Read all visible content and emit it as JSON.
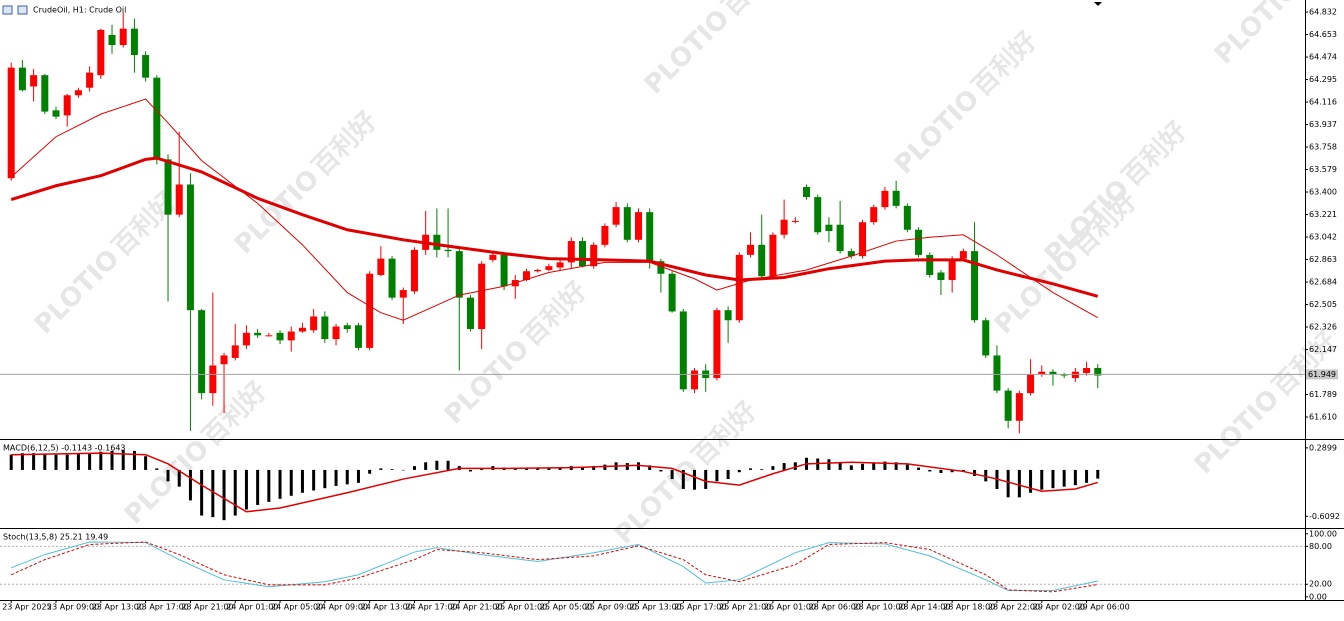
{
  "chart_data": [
    {
      "type": "candlestick",
      "title": "CrudeOil, H1: Crude Oil",
      "open": [
        63.51,
        64.39,
        64.24,
        64.33,
        64.05,
        64.01,
        64.17,
        64.23,
        64.33,
        64.65,
        64.57,
        64.7,
        64.49,
        64.31,
        63.66,
        63.22,
        63.46,
        62.46,
        61.8,
        62.03,
        62.08,
        62.18,
        62.28,
        62.26,
        62.28,
        62.22,
        62.29,
        62.3,
        62.41,
        62.23,
        62.34,
        62.34,
        62.16,
        62.74,
        62.87,
        62.56,
        62.61,
        62.94,
        63.06,
        62.94,
        62.93,
        62.56,
        62.31,
        62.86,
        62.9,
        62.65,
        62.7,
        62.77,
        62.78,
        62.8,
        62.84,
        63.01,
        62.81,
        62.98,
        63.14,
        63.28,
        63.02,
        63.24,
        62.85,
        62.75,
        62.45,
        61.83,
        61.98,
        61.92,
        62.46,
        62.38,
        62.9,
        62.98,
        62.73,
        63.06,
        63.17,
        63.44,
        63.36,
        63.14,
        63.14,
        62.93,
        62.89,
        63.16,
        63.28,
        63.41,
        63.29,
        63.1,
        62.9,
        62.76,
        62.7,
        62.87,
        62.93,
        62.38,
        62.1,
        61.82,
        61.58,
        61.8,
        61.95,
        61.97,
        61.95,
        61.92,
        61.96,
        62.0
      ],
      "high": [
        64.43,
        64.45,
        64.38,
        64.34,
        64.08,
        64.18,
        64.23,
        64.4,
        64.7,
        64.73,
        64.83,
        64.78,
        64.52,
        64.33,
        63.7,
        63.88,
        63.55,
        62.47,
        62.6,
        62.12,
        62.35,
        62.34,
        62.31,
        62.28,
        62.3,
        62.33,
        62.36,
        62.47,
        62.45,
        62.35,
        62.36,
        62.36,
        62.77,
        62.97,
        62.89,
        62.64,
        62.96,
        63.25,
        63.27,
        63.27,
        62.96,
        62.58,
        62.85,
        62.93,
        62.92,
        62.74,
        62.79,
        62.79,
        62.83,
        62.87,
        63.04,
        63.04,
        63.0,
        63.15,
        63.32,
        63.31,
        63.27,
        63.27,
        62.87,
        62.77,
        62.47,
        62.0,
        62.03,
        62.48,
        62.49,
        62.92,
        63.08,
        63.22,
        63.08,
        63.34,
        63.2,
        63.46,
        63.38,
        63.2,
        63.33,
        62.95,
        63.18,
        63.3,
        63.44,
        63.49,
        63.31,
        63.12,
        62.92,
        62.78,
        62.89,
        62.95,
        63.16,
        62.4,
        62.18,
        61.84,
        61.82,
        62.07,
        62.02,
        61.99,
        61.96,
        62.0,
        62.05,
        62.03
      ],
      "low": [
        63.49,
        64.2,
        64.12,
        64.02,
        63.98,
        63.92,
        64.15,
        64.2,
        64.3,
        64.5,
        64.55,
        64.35,
        64.28,
        63.62,
        62.53,
        63.2,
        61.5,
        61.75,
        61.7,
        61.64,
        62.06,
        62.15,
        62.24,
        62.25,
        62.19,
        62.13,
        62.28,
        62.28,
        62.2,
        62.18,
        62.28,
        62.14,
        62.14,
        62.73,
        62.54,
        62.35,
        62.59,
        62.9,
        62.88,
        62.88,
        61.98,
        62.29,
        62.15,
        62.84,
        62.62,
        62.55,
        62.69,
        62.76,
        62.77,
        62.78,
        62.79,
        62.8,
        62.79,
        62.96,
        63.12,
        63.0,
        63.0,
        62.79,
        62.6,
        62.44,
        61.81,
        61.8,
        61.81,
        61.9,
        62.2,
        62.36,
        62.88,
        62.7,
        62.72,
        63.03,
        63.15,
        63.34,
        63.06,
        63.0,
        62.91,
        62.87,
        62.87,
        63.14,
        63.26,
        63.27,
        63.08,
        62.88,
        62.72,
        62.58,
        62.6,
        62.85,
        62.36,
        62.08,
        61.8,
        61.52,
        61.48,
        61.78,
        61.93,
        61.86,
        61.92,
        61.89,
        61.94,
        61.84
      ],
      "close": [
        64.39,
        64.21,
        64.33,
        64.04,
        64.0,
        64.17,
        64.21,
        64.35,
        64.69,
        64.57,
        64.7,
        64.49,
        64.31,
        63.66,
        63.22,
        63.46,
        62.46,
        61.8,
        62.02,
        62.1,
        62.18,
        62.28,
        62.26,
        62.26,
        62.22,
        62.29,
        62.32,
        62.41,
        62.23,
        62.33,
        62.31,
        62.16,
        62.75,
        62.87,
        62.56,
        62.62,
        62.94,
        63.06,
        62.94,
        62.93,
        62.56,
        62.31,
        62.83,
        62.9,
        62.65,
        62.7,
        62.77,
        62.78,
        62.81,
        62.84,
        63.01,
        62.81,
        62.98,
        63.13,
        63.28,
        63.02,
        63.24,
        62.85,
        62.75,
        62.45,
        61.83,
        61.98,
        61.92,
        62.46,
        62.38,
        62.9,
        62.98,
        62.73,
        63.06,
        63.18,
        63.17,
        63.36,
        63.08,
        63.09,
        62.93,
        62.89,
        63.16,
        63.28,
        63.41,
        63.29,
        63.1,
        62.9,
        62.74,
        62.7,
        62.87,
        62.93,
        62.38,
        62.1,
        61.82,
        61.58,
        61.8,
        61.95,
        61.97,
        61.95,
        61.94,
        61.97,
        62.0,
        61.94
      ],
      "up_color": "#ff0000",
      "down_color": "#008000",
      "lines": [
        {
          "color": "#e00000",
          "width": 3,
          "x": [
            0,
            4,
            8,
            12,
            13,
            17,
            22,
            26,
            30,
            35,
            39,
            44,
            48,
            53,
            57,
            62,
            65,
            69,
            73,
            78,
            81,
            85,
            88,
            93,
            97
          ],
          "values": [
            63.34,
            63.45,
            63.53,
            63.66,
            63.67,
            63.56,
            63.35,
            63.22,
            63.1,
            63.02,
            62.97,
            62.91,
            62.87,
            62.86,
            62.85,
            62.74,
            62.7,
            62.72,
            62.79,
            62.85,
            62.86,
            62.86,
            62.78,
            62.67,
            62.57
          ]
        },
        {
          "color": "#e00000",
          "width": 1,
          "x": [
            0,
            4,
            8,
            12,
            14,
            17,
            22,
            26,
            30,
            33,
            35,
            37,
            40,
            44,
            48,
            53,
            57,
            61,
            63,
            66,
            71,
            75,
            79,
            82,
            85,
            88,
            93,
            97
          ],
          "values": [
            63.52,
            63.84,
            64.02,
            64.14,
            63.95,
            63.65,
            63.31,
            62.98,
            62.6,
            62.44,
            62.38,
            62.46,
            62.58,
            62.65,
            62.76,
            62.84,
            62.84,
            62.71,
            62.62,
            62.7,
            62.78,
            62.89,
            63.01,
            63.04,
            63.06,
            62.9,
            62.6,
            62.4
          ]
        }
      ],
      "last_price": 61.949,
      "xlim": [
        -1,
        115.5
      ],
      "ylim": [
        61.443,
        64.928
      ],
      "yticks": [
        64.832,
        64.653,
        64.474,
        64.295,
        64.116,
        63.937,
        63.758,
        63.579,
        {
          "value": 63.4,
          "label": "63.400"
        },
        63.221,
        63.042,
        62.863,
        62.684,
        62.505,
        62.326,
        62.147,
        61.789,
        {
          "value": 61.61,
          "label": "61.610"
        }
      ]
    },
    {
      "type": "macd",
      "title": "MACD(6,12,5) -0.1143 -0.1643",
      "values": [
        0.2,
        0.22,
        0.22,
        0.21,
        0.2,
        0.2,
        0.21,
        0.22,
        0.24,
        0.25,
        0.26,
        0.25,
        0.18,
        0.02,
        -0.15,
        -0.22,
        -0.4,
        -0.6,
        -0.62,
        -0.66,
        -0.6,
        -0.52,
        -0.46,
        -0.42,
        -0.38,
        -0.34,
        -0.3,
        -0.27,
        -0.24,
        -0.21,
        -0.19,
        -0.17,
        -0.05,
        0.02,
        0.01,
        0,
        0.05,
        0.1,
        0.12,
        0.12,
        0.05,
        -0.02,
        0.02,
        0.05,
        0.03,
        0.02,
        0.02,
        0.02,
        0.02,
        0.03,
        0.05,
        0.04,
        0.05,
        0.07,
        0.1,
        0.09,
        0.1,
        0.06,
        -0.02,
        -0.12,
        -0.25,
        -0.26,
        -0.25,
        -0.15,
        -0.12,
        -0.03,
        0.02,
        0.01,
        0.05,
        0.09,
        0.1,
        0.16,
        0.15,
        0.14,
        0.1,
        0.06,
        0.08,
        0.09,
        0.11,
        0.1,
        0.07,
        0.03,
        -0.02,
        -0.04,
        -0.03,
        -0.02,
        -0.08,
        -0.15,
        -0.25,
        -0.36,
        -0.36,
        -0.3,
        -0.26,
        -0.24,
        -0.22,
        -0.2,
        -0.17,
        -0.1143
      ],
      "color": "#000000",
      "lines": [
        {
          "color": "#e00000",
          "width": 1.5,
          "x": [
            0,
            8,
            12,
            14,
            17,
            21,
            24,
            30,
            35,
            40,
            44,
            50,
            56,
            59,
            62,
            65,
            68,
            71,
            75,
            80,
            85,
            88,
            92,
            95,
            97
          ],
          "values": [
            0.2,
            0.22,
            0.2,
            0.08,
            -0.2,
            -0.55,
            -0.5,
            -0.3,
            -0.12,
            0.02,
            0.02,
            0.03,
            0.06,
            0.02,
            -0.15,
            -0.2,
            -0.05,
            0.08,
            0.1,
            0.08,
            -0.02,
            -0.12,
            -0.28,
            -0.25,
            -0.1643
          ]
        }
      ],
      "xlim": [
        -1,
        115.5
      ],
      "ylim": [
        -0.75,
        0.38
      ],
      "yticks": [
        0.2899,
        -0.6092
      ]
    },
    {
      "type": "stoch",
      "title": "Stoch(13,5,8) 25.21 19.49",
      "series": [
        {
          "color": "#4fc1d1",
          "dash": false,
          "x": [
            0,
            3,
            7,
            12,
            15,
            19,
            23,
            28,
            31,
            36,
            38,
            42,
            47,
            52,
            56,
            60,
            62,
            65,
            70,
            73,
            78,
            82,
            87,
            89,
            93,
            97
          ],
          "values": [
            46,
            67,
            87,
            86,
            59,
            27,
            16,
            24,
            35,
            71,
            78,
            67,
            56,
            70,
            83,
            48,
            22,
            27,
            70,
            86,
            84,
            65,
            27,
            10,
            10,
            25.21
          ]
        },
        {
          "color": "#e00000",
          "dash": true,
          "x": [
            0,
            3,
            7,
            12,
            15,
            19,
            23,
            28,
            31,
            36,
            38,
            42,
            47,
            52,
            56,
            60,
            62,
            65,
            70,
            73,
            78,
            82,
            87,
            89,
            93,
            97
          ],
          "values": [
            35,
            59,
            83,
            87,
            67,
            35,
            19,
            19,
            30,
            59,
            75,
            70,
            59,
            65,
            81,
            59,
            35,
            24,
            51,
            83,
            86,
            75,
            35,
            11,
            8,
            19.49
          ]
        }
      ],
      "levels": [
        80,
        20
      ],
      "xlim": [
        -1,
        115.5
      ],
      "ylim": [
        -5,
        106
      ],
      "yticks": [
        {
          "value": 100,
          "label": "100.00"
        },
        {
          "value": 80,
          "label": "80.00"
        },
        {
          "value": 20,
          "label": "20.00"
        },
        {
          "value": 0,
          "label": "0.00"
        }
      ],
      "xticks": [
        {
          "value": 0,
          "label": "23 Apr 2025"
        },
        {
          "value": 4,
          "label": "23 Apr 09:00"
        },
        {
          "value": 8,
          "label": "23 Apr 13:00"
        },
        {
          "value": 12,
          "label": "23 Apr 17:00"
        },
        {
          "value": 16,
          "label": "23 Apr 21:00"
        },
        {
          "value": 20,
          "label": "24 Apr 01:00"
        },
        {
          "value": 24,
          "label": "24 Apr 05:00"
        },
        {
          "value": 28,
          "label": "24 Apr 09:00"
        },
        {
          "value": 32,
          "label": "24 Apr 13:00"
        },
        {
          "value": 36,
          "label": "24 Apr 17:00"
        },
        {
          "value": 40,
          "label": "24 Apr 21:00"
        },
        {
          "value": 44,
          "label": "25 Apr 01:00"
        },
        {
          "value": 48,
          "label": "25 Apr 05:00"
        },
        {
          "value": 52,
          "label": "25 Apr 09:00"
        },
        {
          "value": 56,
          "label": "25 Apr 13:00"
        },
        {
          "value": 60,
          "label": "25 Apr 17:00"
        },
        {
          "value": 64,
          "label": "25 Apr 21:00"
        },
        {
          "value": 68,
          "label": "26 Apr 01:00"
        },
        {
          "value": 72,
          "label": "28 Apr 06:00"
        },
        {
          "value": 76,
          "label": "28 Apr 10:00"
        },
        {
          "value": 80,
          "label": "28 Apr 14:00"
        },
        {
          "value": 84,
          "label": "28 Apr 18:00"
        },
        {
          "value": 88,
          "label": "28 Apr 22:00"
        },
        {
          "value": 92,
          "label": "29 Apr 02:00"
        },
        {
          "value": 96,
          "label": "29 Apr 06:00"
        }
      ]
    }
  ],
  "watermark": {
    "brand": "PLOTIO",
    "chinese": "百利好"
  }
}
